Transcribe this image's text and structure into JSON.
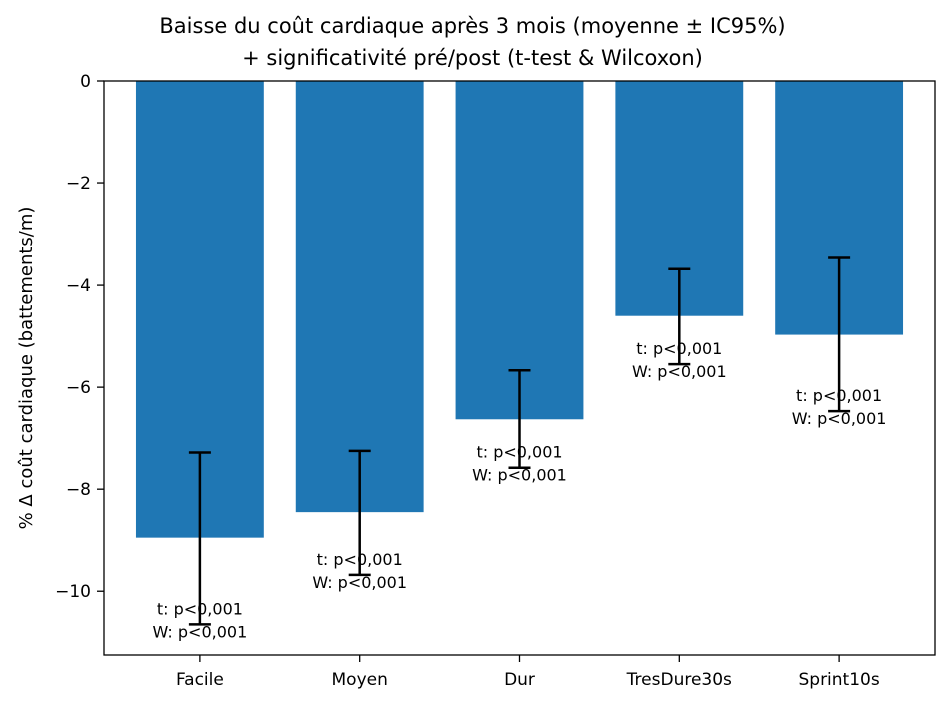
{
  "chart_data": {
    "type": "bar",
    "title_line1": "Baisse du coût cardiaque après 3 mois (moyenne ± IC95%)",
    "title_line2": "+ significativité pré/post (t-test & Wilcoxon)",
    "xlabel": "",
    "ylabel": "% Δ coût cardiaque (battements/m)",
    "ylim": [
      -11.25,
      0
    ],
    "yticks": [
      0,
      -2,
      -4,
      -6,
      -8,
      -10
    ],
    "ytick_labels": [
      "0",
      "−2",
      "−4",
      "−6",
      "−8",
      "−10"
    ],
    "categories": [
      "Facile",
      "Moyen",
      "Dur",
      "TresDure30s",
      "Sprint10s"
    ],
    "values": [
      -8.95,
      -8.45,
      -6.63,
      -4.6,
      -4.97
    ],
    "ci_upper": [
      -7.28,
      -7.25,
      -5.67,
      -3.68,
      -3.46
    ],
    "ci_lower": [
      -10.65,
      -9.68,
      -7.58,
      -5.55,
      -6.47
    ],
    "annotations": [
      [
        "t: p<0,001",
        "W: p<0,001"
      ],
      [
        "t: p<0,001",
        "W: p<0,001"
      ],
      [
        "t: p<0,001",
        "W: p<0,001"
      ],
      [
        "t: p<0,001",
        "W: p<0,001"
      ],
      [
        "t: p<0,001",
        "W: p<0,001"
      ]
    ],
    "bar_color": "#1f77b4",
    "grid": false,
    "legend": "none"
  }
}
